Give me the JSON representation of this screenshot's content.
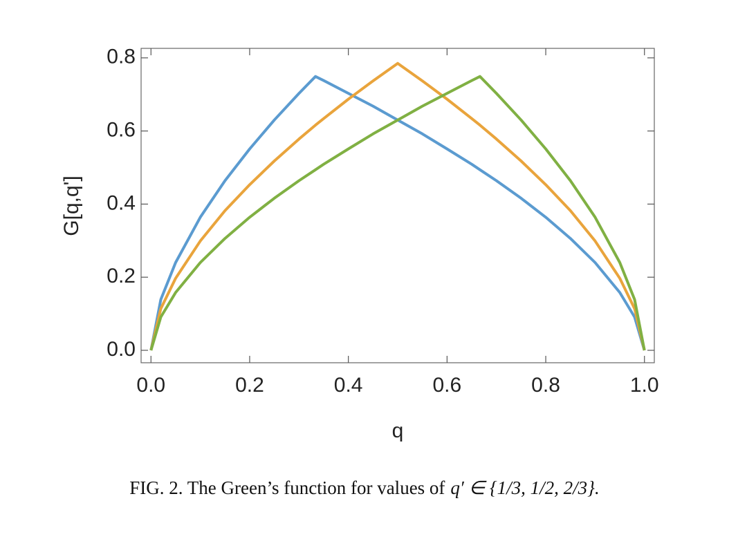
{
  "chart_data": {
    "type": "line",
    "xlabel": "q",
    "ylabel": "G[q,q']",
    "caption": "FIG. 2. The Green’s function for values of",
    "caption_math": "q′ ∈ {1/3, 1/2, 2/3}.",
    "x": [
      0,
      0.02,
      0.05,
      0.1,
      0.15,
      0.2,
      0.25,
      0.3,
      0.3333,
      0.35,
      0.4,
      0.45,
      0.5,
      0.55,
      0.6,
      0.65,
      0.6667,
      0.7,
      0.75,
      0.8,
      0.85,
      0.9,
      0.95,
      0.98,
      1
    ],
    "series": [
      {
        "color": "#5b9bd0",
        "values": [
          0,
          0.139,
          0.24,
          0.364,
          0.464,
          0.551,
          0.63,
          0.703,
          0.749,
          0.738,
          0.703,
          0.668,
          0.63,
          0.592,
          0.551,
          0.509,
          0.494,
          0.464,
          0.416,
          0.364,
          0.306,
          0.24,
          0.158,
          0.091,
          0
        ]
      },
      {
        "color": "#e9a43c",
        "values": [
          0,
          0.114,
          0.197,
          0.299,
          0.382,
          0.453,
          0.518,
          0.578,
          0.616,
          0.634,
          0.687,
          0.737,
          0.785,
          0.737,
          0.687,
          0.634,
          0.616,
          0.578,
          0.518,
          0.453,
          0.382,
          0.299,
          0.197,
          0.114,
          0
        ]
      },
      {
        "color": "#80b043",
        "values": [
          0,
          0.091,
          0.158,
          0.24,
          0.306,
          0.364,
          0.416,
          0.464,
          0.494,
          0.509,
          0.551,
          0.592,
          0.63,
          0.668,
          0.703,
          0.738,
          0.749,
          0.703,
          0.63,
          0.551,
          0.464,
          0.364,
          0.24,
          0.139,
          0
        ]
      }
    ],
    "xlim": [
      -0.02,
      1.02
    ],
    "ylim": [
      -0.034,
      0.826
    ],
    "xticks": [
      {
        "value": 0,
        "label": "0.0"
      },
      0.2,
      0.4,
      0.6,
      0.8,
      {
        "value": 1,
        "label": "1.0"
      }
    ],
    "yticks": [
      {
        "value": 0,
        "label": "0.0"
      },
      0.2,
      0.4,
      0.6,
      0.8
    ],
    "grid": false
  }
}
